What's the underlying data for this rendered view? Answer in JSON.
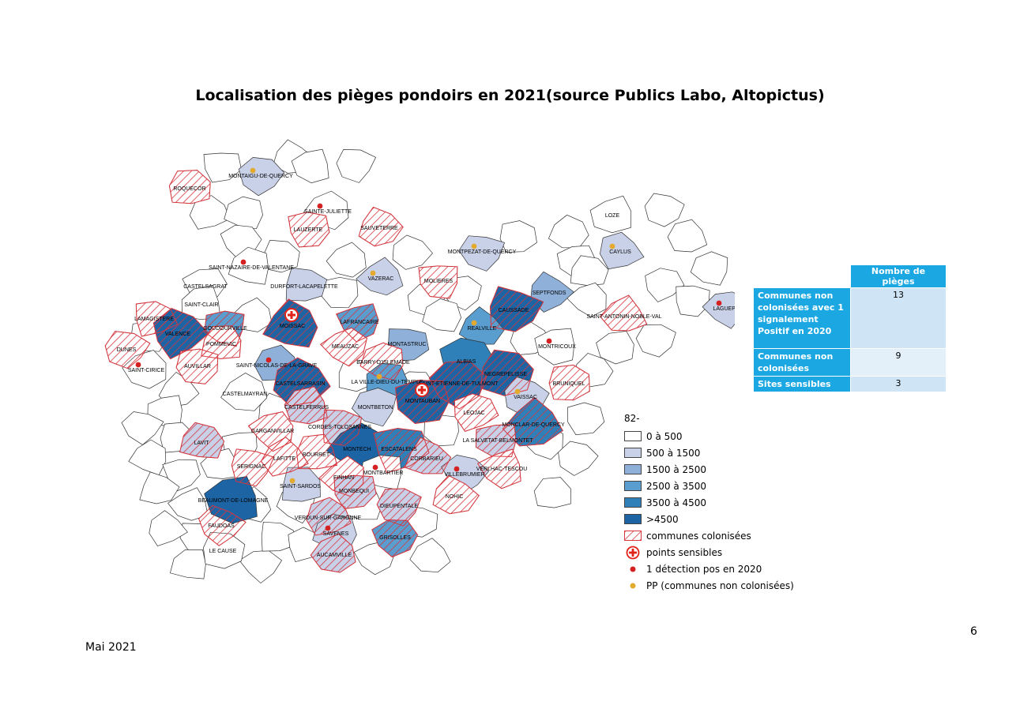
{
  "title": "Localisation des pièges pondoirs en 2021(source Publics Labo, Altopictus)",
  "footer": "Mai 2021",
  "page_number": "6",
  "colors": {
    "c0": "#ffffff",
    "c1": "#c9d1e8",
    "c2": "#8fb1d9",
    "c3": "#5a9dcf",
    "c4": "#2f7fb8",
    "c5": "#1c64a4",
    "hatch": "#d9363e",
    "sensitive": "#e2231a",
    "detection": "#d42020",
    "pp": "#e3aa2d"
  },
  "legend": {
    "title": "82-",
    "classes": [
      {
        "label": "0 à 500",
        "color": "#ffffff"
      },
      {
        "label": "500 à 1500",
        "color": "#c9d1e8"
      },
      {
        "label": "1500 à 2500",
        "color": "#8fb1d9"
      },
      {
        "label": "2500 à 3500",
        "color": "#5a9dcf"
      },
      {
        "label": "3500 à 4500",
        "color": "#2f7fb8"
      },
      {
        "label": ">4500",
        "color": "#1c64a4"
      }
    ],
    "colonised": "communes colonisées",
    "sensitive": "points sensibles",
    "detection": "1 détection pos en 2020",
    "pp": "PP (communes non colonisées)"
  },
  "table": {
    "header": "Nombre de pièges",
    "rows": [
      {
        "label": "Communes non colonisées avec 1 signalement Positif en 2020",
        "value": "13"
      },
      {
        "label": "Communes non colonisées",
        "value": "9"
      },
      {
        "label": "Sites sensibles",
        "value": "3"
      }
    ]
  },
  "communes": [
    "MONTAIGU-DE-QUERCY",
    "ROQUECOR",
    "SAINTE-JULIETTE",
    "LAUZERTE",
    "SAUVETERRE",
    "LOZE",
    "MONTPEZAT-DE-QUERCY",
    "CAYLUS",
    "SAINT-NAZAIRE-DE-VALENTANE",
    "CASTELSAGRAT",
    "DURFORT-LACAPELETTE",
    "VAZERAC",
    "MOLIERES",
    "SEPTFONDS",
    "SAINT-CLAIR",
    "LAGUEPIE",
    "LAMAGISTERE",
    "MOISSAC",
    "LAFRANCAIRE",
    "CAUSSADE",
    "SAINT-ANTONIN-NOBLE-VAL",
    "GOUDOURVILLE",
    "VALENCE",
    "POMMEVIC",
    "MEAUZAC",
    "MONTASTRUC",
    "REALVILLE",
    "MONTRICOUX",
    "DUNES",
    "SAINT-NICOLAS-DE-LA-GRAVE",
    "BARRY-D'ISLEMADE",
    "ALBIAS",
    "NEGREPELISSE",
    "SAINT-CIRICE",
    "AUVILLAR",
    "CASTELSARRASIN",
    "LA VILLE-DIEU-DU-TEMPLE",
    "SAINT-ETIENNE-DE-TULMONT",
    "BRUNIQUEL",
    "CASTELMAYRAN",
    "MONTAUBAN",
    "VAISSAC",
    "CASTELFERRUS",
    "MONTBETON",
    "LEOJAC",
    "LAVIT",
    "GARGANVILLAR",
    "CORDES-TOLOSANNES",
    "MONCLAR-DE-QUERCY",
    "LA SALVETAT-BELMONTET",
    "FAUDOAS",
    "BOURRET",
    "MONTECH",
    "ESCATALENS",
    "CORBARIEU",
    "VERLHAC-TESCOU",
    "SERIGNAC",
    "LAFITTE",
    "MONTBARTIER",
    "VILLEBRUMIER",
    "SAINT-SARDOS",
    "FINHAN",
    "MONBEQUI",
    "NOHIC",
    "BEAUMONT-DE-LOMAGNE",
    "DIEUPENTALE",
    "VERDUN-SUR-GARONNE",
    "SAVENES",
    "GRISOLLES",
    "LE CAUSE",
    "AUCAMVILLE"
  ]
}
